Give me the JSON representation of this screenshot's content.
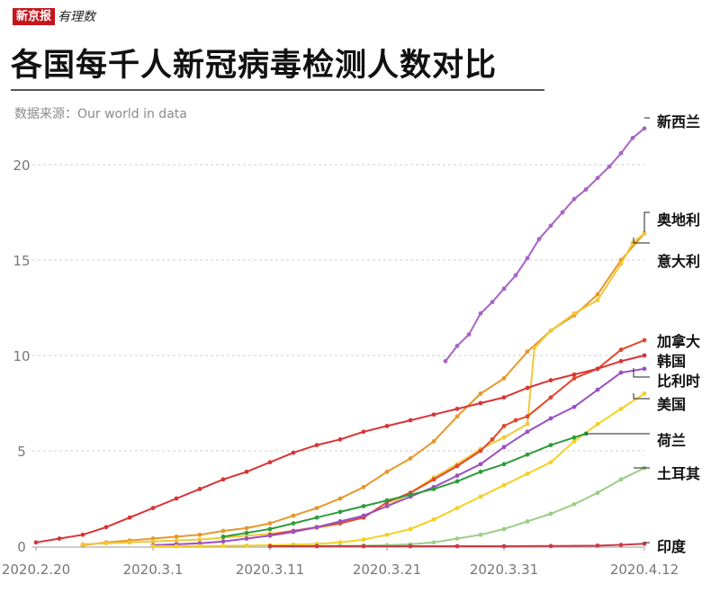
{
  "brand": {
    "name": "新京报",
    "sub": "有理数"
  },
  "title": "各国每千人新冠病毒检测人数对比",
  "source": "数据来源：Our world in data",
  "chart_data": {
    "type": "line",
    "title": "各国每千人新冠病毒检测人数对比",
    "xlabel": "",
    "ylabel": "",
    "x_start": "2020.2.20",
    "x_end": "2020.4.12",
    "xlim": [
      0,
      52
    ],
    "ylim": [
      0,
      22
    ],
    "yticks": [
      0,
      5,
      10,
      15,
      20
    ],
    "xticks": [
      {
        "day": 0,
        "label": "2020.2.20"
      },
      {
        "day": 10,
        "label": "2020.3.1"
      },
      {
        "day": 20,
        "label": "2020.3.11"
      },
      {
        "day": 30,
        "label": "2020.3.21"
      },
      {
        "day": 40,
        "label": "2020.3.31"
      },
      {
        "day": 52,
        "label": "2020.4.12"
      }
    ],
    "series": [
      {
        "name": "新西兰",
        "color": "#a863c5",
        "x": [
          35,
          36,
          37,
          38,
          39,
          40,
          41,
          42,
          43,
          44,
          45,
          46,
          47,
          48,
          49,
          50,
          51,
          52
        ],
        "y": [
          9.7,
          10.5,
          11.1,
          12.2,
          12.8,
          13.5,
          14.2,
          15.1,
          16.1,
          16.8,
          17.5,
          18.2,
          18.7,
          19.3,
          19.9,
          20.6,
          21.4,
          21.9
        ]
      },
      {
        "name": "奥地利",
        "color": "#e8972a",
        "x": [
          4,
          6,
          8,
          10,
          12,
          14,
          16,
          18,
          20,
          22,
          24,
          26,
          28,
          30,
          32,
          34,
          36,
          38,
          40,
          42,
          44,
          46,
          48,
          50,
          52
        ],
        "y": [
          0.05,
          0.2,
          0.3,
          0.4,
          0.5,
          0.6,
          0.8,
          0.95,
          1.2,
          1.6,
          2.0,
          2.5,
          3.1,
          3.9,
          4.6,
          5.5,
          6.8,
          8.0,
          8.8,
          10.2,
          11.3,
          12.1,
          13.2,
          15.0,
          16.4
        ]
      },
      {
        "name": "意大利",
        "color": "#f2c739",
        "x": [
          4,
          6,
          8,
          10,
          12,
          14,
          16,
          18,
          20,
          22,
          24,
          26,
          28,
          30,
          32,
          34,
          36,
          38,
          40,
          42,
          42.6,
          44,
          46,
          48,
          50,
          51,
          52
        ],
        "y": [
          0.1,
          0.15,
          0.2,
          0.25,
          0.3,
          0.35,
          0.45,
          0.55,
          0.65,
          0.8,
          0.95,
          1.2,
          1.6,
          2.1,
          2.8,
          3.6,
          4.3,
          5.1,
          5.7,
          6.4,
          10.4,
          11.3,
          12.2,
          12.9,
          14.8,
          15.9,
          16.4
        ]
      },
      {
        "name": "加拿大",
        "color": "#e2452a",
        "x": [
          20,
          22,
          24,
          26,
          28,
          30,
          32,
          34,
          36,
          38,
          39,
          40,
          41,
          42,
          44,
          46,
          48,
          50,
          52
        ],
        "y": [
          0.6,
          0.8,
          1.0,
          1.2,
          1.5,
          2.3,
          2.8,
          3.5,
          4.2,
          5.0,
          5.6,
          6.3,
          6.6,
          6.8,
          7.8,
          8.8,
          9.3,
          10.3,
          10.8
        ]
      },
      {
        "name": "韩国",
        "color": "#d93436",
        "x": [
          0,
          2,
          4,
          6,
          8,
          10,
          12,
          14,
          16,
          18,
          20,
          22,
          24,
          26,
          28,
          30,
          32,
          34,
          36,
          38,
          40,
          42,
          44,
          46,
          48,
          50,
          52
        ],
        "y": [
          0.2,
          0.4,
          0.6,
          1.0,
          1.5,
          2.0,
          2.5,
          3.0,
          3.5,
          3.9,
          4.4,
          4.9,
          5.3,
          5.6,
          6.0,
          6.3,
          6.6,
          6.9,
          7.2,
          7.5,
          7.8,
          8.3,
          8.7,
          9.0,
          9.3,
          9.7,
          10.0
        ]
      },
      {
        "name": "比利时",
        "color": "#9a4fc4",
        "x": [
          10,
          12,
          14,
          16,
          18,
          20,
          22,
          24,
          26,
          28,
          30,
          32,
          34,
          36,
          38,
          40,
          42,
          44,
          46,
          48,
          50,
          52
        ],
        "y": [
          0.05,
          0.1,
          0.15,
          0.25,
          0.4,
          0.55,
          0.75,
          1.0,
          1.3,
          1.6,
          2.1,
          2.6,
          3.1,
          3.7,
          4.3,
          5.2,
          6.0,
          6.7,
          7.3,
          8.2,
          9.1,
          9.3
        ]
      },
      {
        "name": "美国",
        "color": "#f4d024",
        "x": [
          10,
          12,
          14,
          16,
          18,
          20,
          22,
          24,
          26,
          28,
          30,
          32,
          34,
          36,
          38,
          40,
          42,
          44,
          46,
          48,
          50,
          52
        ],
        "y": [
          0.0,
          0.0,
          0.01,
          0.02,
          0.03,
          0.05,
          0.08,
          0.12,
          0.2,
          0.35,
          0.6,
          0.9,
          1.4,
          2.0,
          2.6,
          3.2,
          3.8,
          4.4,
          5.5,
          6.4,
          7.2,
          8.0
        ]
      },
      {
        "name": "荷兰",
        "color": "#2e9b3c",
        "x": [
          16,
          18,
          20,
          22,
          24,
          26,
          28,
          30,
          32,
          34,
          36,
          38,
          40,
          42,
          44,
          46,
          47
        ],
        "y": [
          0.5,
          0.7,
          0.9,
          1.2,
          1.5,
          1.8,
          2.1,
          2.4,
          2.7,
          3.0,
          3.4,
          3.9,
          4.3,
          4.8,
          5.3,
          5.7,
          5.9
        ]
      },
      {
        "name": "土耳其",
        "color": "#9bcd86",
        "x": [
          20,
          22,
          24,
          26,
          28,
          30,
          32,
          34,
          36,
          38,
          40,
          42,
          44,
          46,
          48,
          50,
          52
        ],
        "y": [
          0.0,
          0.0,
          0.01,
          0.02,
          0.03,
          0.05,
          0.1,
          0.2,
          0.4,
          0.6,
          0.9,
          1.3,
          1.7,
          2.2,
          2.8,
          3.5,
          4.1
        ]
      },
      {
        "name": "印度",
        "color": "#cd3a45",
        "x": [
          20,
          24,
          28,
          32,
          36,
          40,
          44,
          48,
          50,
          52
        ],
        "y": [
          0.0,
          0.0,
          0.0,
          0.0,
          0.0,
          0.0,
          0.01,
          0.03,
          0.07,
          0.13
        ]
      }
    ],
    "labels": [
      "新西兰",
      "奥地利",
      "意大利",
      "加拿大",
      "韩国",
      "比利时",
      "美国",
      "荷兰",
      "土耳其",
      "印度"
    ]
  }
}
